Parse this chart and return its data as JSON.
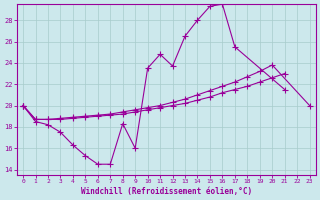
{
  "xlabel": "Windchill (Refroidissement éolien,°C)",
  "xlim": [
    -0.5,
    23.5
  ],
  "ylim": [
    13.5,
    29.5
  ],
  "yticks": [
    14,
    16,
    18,
    20,
    22,
    24,
    26,
    28
  ],
  "xticks": [
    0,
    1,
    2,
    3,
    4,
    5,
    6,
    7,
    8,
    9,
    10,
    11,
    12,
    13,
    14,
    15,
    16,
    17,
    18,
    19,
    20,
    21,
    22,
    23
  ],
  "bg_color": "#cce8ec",
  "line_color": "#990099",
  "grid_color": "#a8cccc",
  "line1_x": [
    0,
    1,
    2,
    3,
    4,
    5,
    6,
    7,
    8,
    9,
    10,
    11,
    12,
    13,
    14,
    15,
    16,
    17,
    21
  ],
  "line1_y": [
    20.0,
    18.5,
    18.2,
    17.5,
    16.3,
    15.3,
    14.5,
    14.5,
    18.3,
    16.0,
    23.5,
    24.8,
    23.7,
    26.5,
    28.0,
    29.3,
    29.5,
    25.5,
    21.5
  ],
  "line2_x": [
    0,
    1,
    2,
    3,
    4,
    5,
    6,
    7,
    8,
    9,
    10,
    11,
    12,
    13,
    14,
    15,
    16,
    17,
    18,
    19,
    20,
    23
  ],
  "line2_y": [
    20.0,
    18.7,
    18.7,
    18.8,
    18.9,
    19.0,
    19.1,
    19.2,
    19.4,
    19.6,
    19.8,
    20.0,
    20.3,
    20.6,
    21.0,
    21.4,
    21.8,
    22.2,
    22.7,
    23.2,
    23.8,
    20.0
  ],
  "line3_x": [
    0,
    1,
    2,
    3,
    4,
    5,
    6,
    7,
    8,
    9,
    10,
    11,
    12,
    13,
    14,
    15,
    16,
    17,
    18,
    19,
    20,
    21,
    22,
    23
  ],
  "line3_y": [
    20.0,
    18.7,
    18.7,
    18.7,
    18.8,
    18.9,
    19.0,
    19.1,
    19.2,
    19.4,
    19.6,
    19.8,
    20.0,
    20.2,
    20.5,
    20.8,
    21.2,
    21.5,
    21.8,
    22.2,
    22.6,
    23.0,
    null,
    null
  ]
}
